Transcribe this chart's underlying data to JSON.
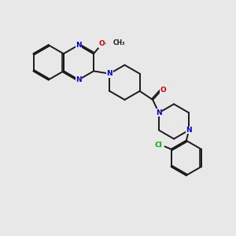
{
  "bg_color": "#e8e8e8",
  "bond_color": "#1a1a1a",
  "N_color": "#0000cc",
  "O_color": "#cc0000",
  "Cl_color": "#00aa00",
  "lw": 1.4,
  "fs": 6.5,
  "dpi": 100,
  "fig_w": 3.0,
  "fig_h": 3.0,
  "xlim": [
    0,
    10
  ],
  "ylim": [
    0,
    10
  ]
}
